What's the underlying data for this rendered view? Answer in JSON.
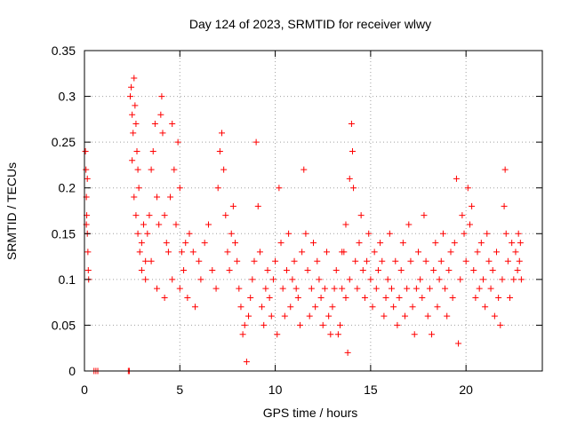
{
  "chart_data": {
    "type": "scatter",
    "title": "Day 124 of 2023, SRMTID for receiver wlwy",
    "xlabel": "GPS time / hours",
    "ylabel": "SRMTID / TECUs",
    "xlim": [
      0,
      24
    ],
    "ylim": [
      0,
      0.35
    ],
    "xticks": [
      0,
      5,
      10,
      15,
      20
    ],
    "yticks": [
      0,
      0.05,
      0.1,
      0.15,
      0.2,
      0.25,
      0.3,
      0.35
    ],
    "xtick_labels": [
      "0",
      "5",
      "10",
      "15",
      "20"
    ],
    "ytick_labels": [
      "0",
      "0.05",
      "0.1",
      "0.15",
      "0.2",
      "0.25",
      "0.3",
      "0.35"
    ],
    "grid": true,
    "marker": "+",
    "color": "#ff0000",
    "series": [
      {
        "name": "SRMTID",
        "points": [
          [
            0.05,
            0.24
          ],
          [
            0.08,
            0.22
          ],
          [
            0.1,
            0.19
          ],
          [
            0.12,
            0.17
          ],
          [
            0.15,
            0.15
          ],
          [
            0.18,
            0.13
          ],
          [
            0.2,
            0.11
          ],
          [
            0.22,
            0.1
          ],
          [
            0.1,
            0.16
          ],
          [
            0.15,
            0.21
          ],
          [
            0.5,
            0.0
          ],
          [
            0.6,
            0.0
          ],
          [
            0.7,
            0.0
          ],
          [
            2.3,
            0.0
          ],
          [
            2.35,
            0.0
          ],
          [
            2.4,
            0.3
          ],
          [
            2.45,
            0.31
          ],
          [
            2.5,
            0.28
          ],
          [
            2.55,
            0.26
          ],
          [
            2.6,
            0.32
          ],
          [
            2.65,
            0.29
          ],
          [
            2.7,
            0.27
          ],
          [
            2.75,
            0.24
          ],
          [
            2.8,
            0.22
          ],
          [
            2.85,
            0.2
          ],
          [
            2.5,
            0.23
          ],
          [
            2.6,
            0.19
          ],
          [
            2.7,
            0.17
          ],
          [
            2.8,
            0.15
          ],
          [
            2.9,
            0.13
          ],
          [
            3.0,
            0.14
          ],
          [
            3.1,
            0.16
          ],
          [
            3.2,
            0.12
          ],
          [
            3.3,
            0.15
          ],
          [
            3.4,
            0.17
          ],
          [
            3.5,
            0.22
          ],
          [
            3.6,
            0.24
          ],
          [
            3.7,
            0.27
          ],
          [
            3.8,
            0.19
          ],
          [
            3.9,
            0.16
          ],
          [
            4.0,
            0.28
          ],
          [
            4.05,
            0.3
          ],
          [
            4.1,
            0.26
          ],
          [
            4.2,
            0.17
          ],
          [
            4.3,
            0.14
          ],
          [
            4.4,
            0.13
          ],
          [
            4.5,
            0.19
          ],
          [
            4.6,
            0.27
          ],
          [
            4.7,
            0.22
          ],
          [
            4.8,
            0.16
          ],
          [
            4.9,
            0.25
          ],
          [
            5.0,
            0.2
          ],
          [
            5.1,
            0.13
          ],
          [
            5.2,
            0.11
          ],
          [
            5.3,
            0.14
          ],
          [
            3.0,
            0.11
          ],
          [
            3.2,
            0.1
          ],
          [
            3.5,
            0.12
          ],
          [
            3.8,
            0.09
          ],
          [
            4.2,
            0.08
          ],
          [
            4.6,
            0.1
          ],
          [
            5.0,
            0.09
          ],
          [
            5.4,
            0.08
          ],
          [
            5.8,
            0.07
          ],
          [
            6.0,
            0.12
          ],
          [
            5.5,
            0.15
          ],
          [
            5.7,
            0.13
          ],
          [
            6.1,
            0.1
          ],
          [
            6.3,
            0.14
          ],
          [
            6.5,
            0.16
          ],
          [
            6.7,
            0.11
          ],
          [
            6.9,
            0.09
          ],
          [
            7.0,
            0.2
          ],
          [
            7.1,
            0.24
          ],
          [
            7.2,
            0.26
          ],
          [
            7.3,
            0.22
          ],
          [
            7.4,
            0.17
          ],
          [
            7.5,
            0.13
          ],
          [
            7.6,
            0.11
          ],
          [
            7.7,
            0.15
          ],
          [
            7.8,
            0.18
          ],
          [
            7.9,
            0.14
          ],
          [
            8.0,
            0.12
          ],
          [
            8.1,
            0.09
          ],
          [
            8.2,
            0.07
          ],
          [
            8.3,
            0.04
          ],
          [
            8.4,
            0.05
          ],
          [
            8.5,
            0.01
          ],
          [
            8.6,
            0.06
          ],
          [
            8.7,
            0.08
          ],
          [
            8.8,
            0.1
          ],
          [
            8.9,
            0.12
          ],
          [
            9.0,
            0.25
          ],
          [
            9.1,
            0.18
          ],
          [
            9.2,
            0.13
          ],
          [
            9.3,
            0.07
          ],
          [
            9.4,
            0.05
          ],
          [
            9.5,
            0.09
          ],
          [
            9.6,
            0.11
          ],
          [
            9.7,
            0.08
          ],
          [
            9.8,
            0.06
          ],
          [
            9.9,
            0.1
          ],
          [
            10.0,
            0.12
          ],
          [
            10.1,
            0.04
          ],
          [
            10.2,
            0.2
          ],
          [
            10.3,
            0.14
          ],
          [
            10.4,
            0.09
          ],
          [
            10.5,
            0.06
          ],
          [
            10.6,
            0.11
          ],
          [
            10.7,
            0.15
          ],
          [
            10.8,
            0.07
          ],
          [
            10.9,
            0.1
          ],
          [
            11.0,
            0.12
          ],
          [
            11.1,
            0.09
          ],
          [
            11.2,
            0.08
          ],
          [
            11.3,
            0.05
          ],
          [
            11.4,
            0.13
          ],
          [
            11.5,
            0.22
          ],
          [
            11.6,
            0.15
          ],
          [
            11.7,
            0.11
          ],
          [
            11.8,
            0.06
          ],
          [
            11.9,
            0.09
          ],
          [
            12.0,
            0.14
          ],
          [
            12.1,
            0.07
          ],
          [
            12.2,
            0.12
          ],
          [
            12.3,
            0.1
          ],
          [
            12.4,
            0.08
          ],
          [
            12.5,
            0.05
          ],
          [
            12.6,
            0.09
          ],
          [
            12.7,
            0.13
          ],
          [
            12.8,
            0.06
          ],
          [
            12.9,
            0.04
          ],
          [
            13.0,
            0.07
          ],
          [
            13.1,
            0.09
          ],
          [
            13.2,
            0.11
          ],
          [
            13.3,
            0.04
          ],
          [
            13.4,
            0.05
          ],
          [
            13.5,
            0.09
          ],
          [
            13.6,
            0.13
          ],
          [
            13.7,
            0.08
          ],
          [
            13.8,
            0.02
          ],
          [
            13.9,
            0.1
          ],
          [
            14.0,
            0.27
          ],
          [
            14.05,
            0.24
          ],
          [
            14.1,
            0.2
          ],
          [
            13.5,
            0.13
          ],
          [
            13.7,
            0.16
          ],
          [
            13.9,
            0.21
          ],
          [
            14.2,
            0.12
          ],
          [
            14.3,
            0.09
          ],
          [
            14.4,
            0.14
          ],
          [
            14.5,
            0.17
          ],
          [
            14.6,
            0.11
          ],
          [
            14.7,
            0.08
          ],
          [
            14.8,
            0.12
          ],
          [
            14.9,
            0.15
          ],
          [
            15.0,
            0.1
          ],
          [
            15.1,
            0.07
          ],
          [
            15.2,
            0.13
          ],
          [
            15.3,
            0.09
          ],
          [
            15.4,
            0.11
          ],
          [
            15.5,
            0.14
          ],
          [
            15.6,
            0.12
          ],
          [
            15.7,
            0.06
          ],
          [
            15.8,
            0.08
          ],
          [
            15.9,
            0.1
          ],
          [
            16.0,
            0.15
          ],
          [
            16.1,
            0.09
          ],
          [
            16.2,
            0.07
          ],
          [
            16.3,
            0.12
          ],
          [
            16.4,
            0.05
          ],
          [
            16.5,
            0.08
          ],
          [
            16.6,
            0.11
          ],
          [
            16.7,
            0.14
          ],
          [
            16.8,
            0.06
          ],
          [
            16.9,
            0.09
          ],
          [
            17.0,
            0.16
          ],
          [
            17.1,
            0.12
          ],
          [
            17.2,
            0.07
          ],
          [
            17.3,
            0.04
          ],
          [
            17.4,
            0.09
          ],
          [
            17.5,
            0.13
          ],
          [
            17.6,
            0.1
          ],
          [
            17.7,
            0.08
          ],
          [
            17.8,
            0.17
          ],
          [
            17.9,
            0.12
          ],
          [
            18.0,
            0.06
          ],
          [
            18.1,
            0.09
          ],
          [
            18.2,
            0.04
          ],
          [
            18.3,
            0.11
          ],
          [
            18.4,
            0.14
          ],
          [
            18.5,
            0.07
          ],
          [
            18.6,
            0.1
          ],
          [
            18.7,
            0.12
          ],
          [
            18.8,
            0.15
          ],
          [
            18.9,
            0.09
          ],
          [
            19.0,
            0.06
          ],
          [
            19.1,
            0.11
          ],
          [
            19.2,
            0.13
          ],
          [
            19.3,
            0.08
          ],
          [
            19.4,
            0.14
          ],
          [
            19.5,
            0.21
          ],
          [
            19.6,
            0.03
          ],
          [
            19.7,
            0.1
          ],
          [
            19.8,
            0.17
          ],
          [
            19.9,
            0.15
          ],
          [
            20.0,
            0.12
          ],
          [
            20.1,
            0.2
          ],
          [
            20.2,
            0.16
          ],
          [
            20.3,
            0.18
          ],
          [
            20.4,
            0.11
          ],
          [
            20.5,
            0.08
          ],
          [
            20.6,
            0.13
          ],
          [
            20.7,
            0.09
          ],
          [
            20.8,
            0.14
          ],
          [
            20.9,
            0.1
          ],
          [
            21.0,
            0.07
          ],
          [
            21.1,
            0.15
          ],
          [
            21.2,
            0.12
          ],
          [
            21.3,
            0.09
          ],
          [
            21.4,
            0.11
          ],
          [
            21.5,
            0.06
          ],
          [
            21.6,
            0.13
          ],
          [
            21.7,
            0.08
          ],
          [
            21.8,
            0.05
          ],
          [
            21.9,
            0.1
          ],
          [
            22.0,
            0.18
          ],
          [
            22.05,
            0.22
          ],
          [
            22.1,
            0.15
          ],
          [
            22.2,
            0.12
          ],
          [
            22.3,
            0.08
          ],
          [
            22.4,
            0.14
          ],
          [
            22.5,
            0.1
          ],
          [
            22.6,
            0.13
          ],
          [
            22.7,
            0.11
          ],
          [
            22.75,
            0.15
          ],
          [
            22.8,
            0.12
          ],
          [
            22.85,
            0.14
          ],
          [
            22.9,
            0.1
          ]
        ]
      }
    ]
  }
}
